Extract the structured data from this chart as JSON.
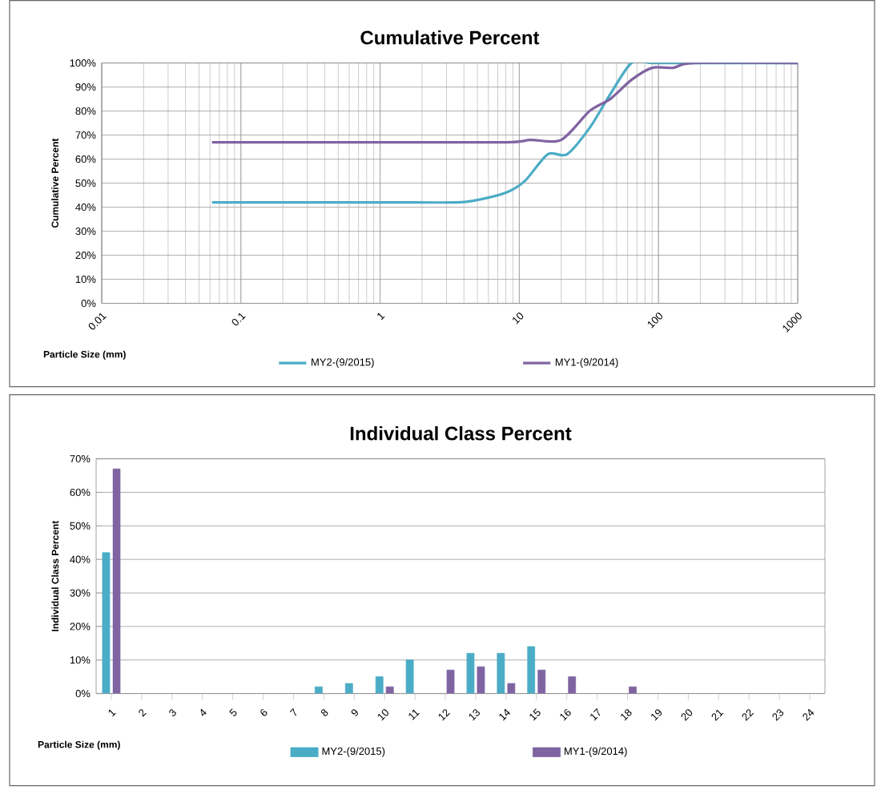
{
  "chart_data": [
    {
      "type": "line",
      "title": "Cumulative Percent",
      "xlabel": "Particle Size (mm)",
      "ylabel": "Cumulative Percent",
      "log": "x",
      "grid": true,
      "legend": "bottom",
      "marker": "none",
      "line_style": "solid",
      "xlim": [
        0.01,
        1000
      ],
      "xticks": [
        {
          "value": 0.01,
          "label": "0.01"
        },
        {
          "value": 0.1,
          "label": "0.1"
        },
        1,
        10,
        100,
        1000
      ],
      "ylim": [
        0,
        100
      ],
      "yticks": [
        {
          "value": 0,
          "label": "0%"
        },
        {
          "value": 10,
          "label": "10%"
        },
        {
          "value": 20,
          "label": "20%"
        },
        {
          "value": 30,
          "label": "30%"
        },
        {
          "value": 40,
          "label": "40%"
        },
        {
          "value": 50,
          "label": "50%"
        },
        {
          "value": 60,
          "label": "60%"
        },
        {
          "value": 70,
          "label": "70%"
        },
        {
          "value": 80,
          "label": "80%"
        },
        {
          "value": 90,
          "label": "90%"
        },
        {
          "value": 100,
          "label": "100%"
        }
      ],
      "series": [
        {
          "name": "MY2-(9/2015)",
          "color": "#4bacc6",
          "x": [
            0.062,
            1,
            3.5,
            5,
            8,
            11,
            16,
            22,
            32,
            45,
            64,
            90,
            180,
            1000
          ],
          "values": [
            42,
            42,
            42,
            43,
            46,
            51,
            62,
            62,
            73,
            87,
            100,
            100,
            100,
            100
          ]
        },
        {
          "name": "MY1-(9/2014)",
          "color": "#8064a2",
          "x": [
            0.062,
            1,
            8,
            12,
            20,
            32,
            45,
            64,
            90,
            128,
            180,
            1000
          ],
          "values": [
            67,
            67,
            67,
            68,
            68,
            80,
            85,
            93,
            98,
            98,
            100,
            100
          ]
        }
      ]
    },
    {
      "type": "bar",
      "title": "Individual Class Percent",
      "xlabel": "Particle Size (mm)",
      "ylabel": "Individual Class Percent",
      "grid": "y",
      "legend": "bottom",
      "categories": [
        "1",
        "2",
        "3",
        "4",
        "5",
        "6",
        "7",
        "8",
        "9",
        "10",
        "11",
        "12",
        "13",
        "14",
        "15",
        "16",
        "17",
        "18",
        "19",
        "20",
        "21",
        "22",
        "23",
        "24"
      ],
      "ylim": [
        0,
        70
      ],
      "yticks": [
        {
          "value": 0,
          "label": "0%"
        },
        {
          "value": 10,
          "label": "10%"
        },
        {
          "value": 20,
          "label": "20%"
        },
        {
          "value": 30,
          "label": "30%"
        },
        {
          "value": 40,
          "label": "40%"
        },
        {
          "value": 50,
          "label": "50%"
        },
        {
          "value": 60,
          "label": "60%"
        },
        {
          "value": 70,
          "label": "70%"
        }
      ],
      "series": [
        {
          "name": "MY2-(9/2015)",
          "color": "#4bacc6",
          "values": [
            42,
            null,
            null,
            null,
            null,
            null,
            null,
            2,
            3,
            5,
            10,
            null,
            12,
            12,
            14,
            null,
            null,
            null,
            null,
            null,
            null,
            null,
            null,
            null
          ]
        },
        {
          "name": "MY1-(9/2014)",
          "color": "#8064a2",
          "values": [
            67,
            null,
            null,
            null,
            null,
            null,
            null,
            null,
            null,
            2,
            null,
            7,
            8,
            3,
            7,
            5,
            null,
            2,
            null,
            null,
            null,
            null,
            null,
            null
          ]
        }
      ]
    }
  ]
}
